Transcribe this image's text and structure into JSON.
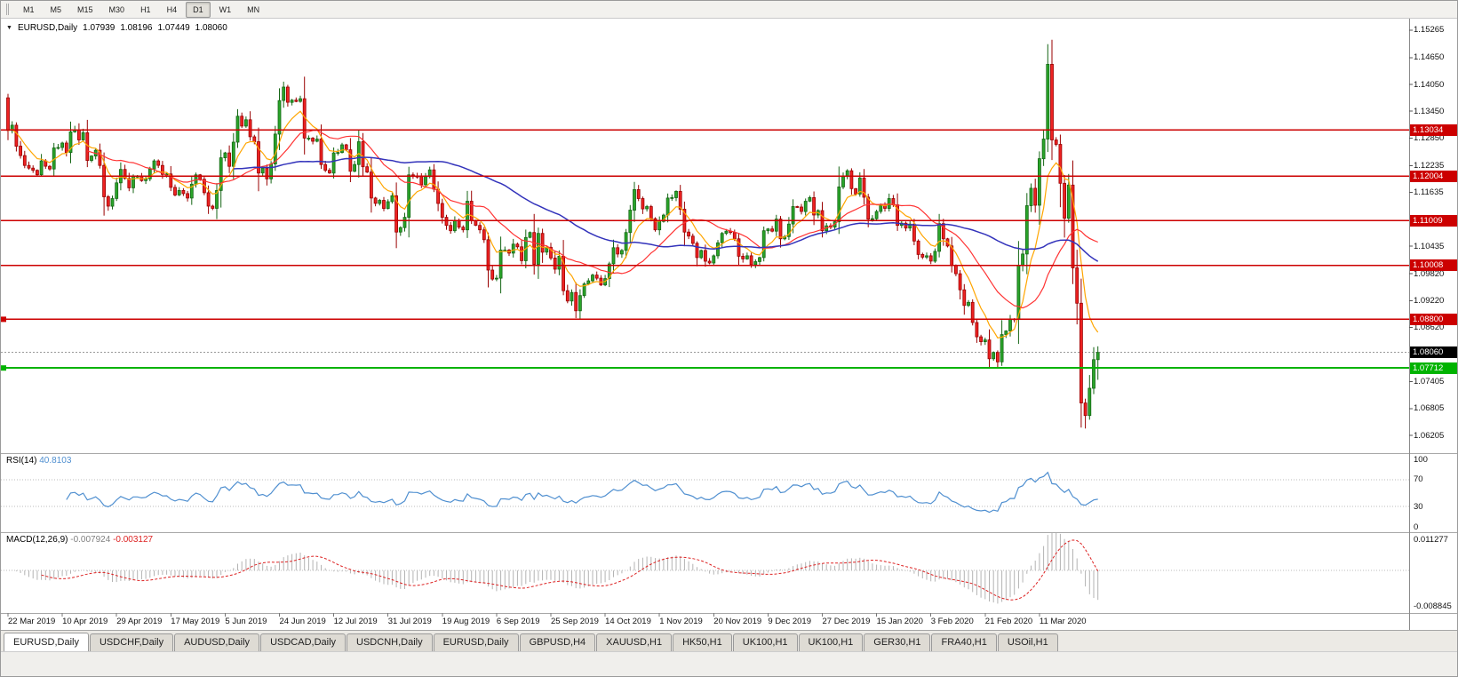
{
  "colors": {
    "up_fill": "#2aa52a",
    "up_stroke": "#156615",
    "down_fill": "#ee2222",
    "down_stroke": "#990000",
    "hline_red": "#cc0000",
    "hline_green": "#00b300",
    "ma_fast": "#ffa500",
    "ma_mid": "#ff3333",
    "ma_slow": "#3333bb",
    "rsi_line": "#4f8fd0",
    "macd_hist": "#b3b3b3",
    "macd_signal": "#dd2222",
    "tag_current": "#000000"
  },
  "toolbar": {
    "timeframes": [
      "M1",
      "M5",
      "M15",
      "M30",
      "H1",
      "H4",
      "D1",
      "W1",
      "MN"
    ],
    "active": "D1"
  },
  "main_chart": {
    "title": {
      "symbol": "EURUSD,Daily",
      "open": "1.07939",
      "high": "1.08196",
      "low": "1.07449",
      "close": "1.08060"
    },
    "price_axis": {
      "ticks": [
        "1.15265",
        "1.14650",
        "1.14050",
        "1.13450",
        "1.12850",
        "1.12235",
        "1.11635",
        "1.10435",
        "1.09820",
        "1.09220",
        "1.08620",
        "1.07405",
        "1.06805",
        "1.06205"
      ]
    },
    "hlines": [
      {
        "value": 1.13034,
        "label": "1.13034"
      },
      {
        "value": 1.12004,
        "label": "1.12004"
      },
      {
        "value": 1.11009,
        "label": "1.11009"
      },
      {
        "value": 1.10008,
        "label": "1.10008"
      },
      {
        "value": 1.088,
        "label": "1.08800",
        "anchor": true
      }
    ],
    "support_line": {
      "value": 1.07712,
      "label": "1.07712",
      "anchor": true
    },
    "current_price": {
      "value": 1.0806,
      "label": "1.08060"
    }
  },
  "rsi_panel": {
    "label": "RSI(14)",
    "value": "40.8103",
    "period": 14,
    "levels": [
      70,
      30
    ],
    "ticks": [
      {
        "label": "100",
        "value": 100
      },
      {
        "label": "70",
        "value": 70
      },
      {
        "label": "30",
        "value": 30
      },
      {
        "label": "0",
        "value": 0
      }
    ]
  },
  "macd_panel": {
    "label": "MACD(12,26,9)",
    "main_value": "-0.007924",
    "signal_value": "-0.003127",
    "params": {
      "fast": 12,
      "slow": 26,
      "signal": 9
    },
    "ticks": [
      {
        "label": "0.011277",
        "value": 0.011277
      },
      {
        "label": "-0.008845",
        "value": -0.008845
      }
    ]
  },
  "tabs": [
    {
      "label": "EURUSD,Daily",
      "active": true
    },
    {
      "label": "USDCHF,Daily"
    },
    {
      "label": "AUDUSD,Daily"
    },
    {
      "label": "USDCAD,Daily"
    },
    {
      "label": "USDCNH,Daily"
    },
    {
      "label": "EURUSD,Daily"
    },
    {
      "label": "GBPUSD,H4"
    },
    {
      "label": "XAUUSD,H1"
    },
    {
      "label": "HK50,H1"
    },
    {
      "label": "UK100,H1"
    },
    {
      "label": "UK100,H1"
    },
    {
      "label": "GER30,H1"
    },
    {
      "label": "FRA40,H1"
    },
    {
      "label": "USOil,H1"
    }
  ],
  "chart_data": {
    "type": "candlestick",
    "symbol": "EURUSD",
    "timeframe": "Daily",
    "y_range": [
      1.0585,
      1.155
    ],
    "x_label_step": 13,
    "x_labels": [
      "22 Mar 2019",
      "10 Apr 2019",
      "29 Apr 2019",
      "17 May 2019",
      "5 Jun 2019",
      "24 Jun 2019",
      "12 Jul 2019",
      "31 Jul 2019",
      "19 Aug 2019",
      "6 Sep 2019",
      "25 Sep 2019",
      "14 Oct 2019",
      "1 Nov 2019",
      "20 Nov 2019",
      "9 Dec 2019",
      "27 Dec 2019",
      "15 Jan 2020",
      "3 Feb 2020",
      "21 Feb 2020",
      "11 Mar 2020"
    ],
    "first_open": 1.1375,
    "closes": [
      1.1302,
      1.1314,
      1.1267,
      1.1246,
      1.1224,
      1.1218,
      1.1213,
      1.1203,
      1.1234,
      1.1222,
      1.1216,
      1.1263,
      1.1264,
      1.1274,
      1.1253,
      1.1299,
      1.1304,
      1.1281,
      1.1297,
      1.1235,
      1.1245,
      1.1258,
      1.1224,
      1.1154,
      1.1133,
      1.115,
      1.1185,
      1.1215,
      1.1195,
      1.1174,
      1.12,
      1.12,
      1.119,
      1.1194,
      1.1216,
      1.1234,
      1.1224,
      1.1204,
      1.1205,
      1.1175,
      1.1158,
      1.1168,
      1.1161,
      1.1151,
      1.1182,
      1.1203,
      1.1193,
      1.1163,
      1.1133,
      1.1128,
      1.1168,
      1.1241,
      1.1252,
      1.1222,
      1.1276,
      1.1334,
      1.1312,
      1.1326,
      1.1288,
      1.1277,
      1.1207,
      1.1218,
      1.1194,
      1.1227,
      1.1294,
      1.1369,
      1.1399,
      1.1365,
      1.137,
      1.1367,
      1.1373,
      1.1285,
      1.1285,
      1.1278,
      1.1283,
      1.1226,
      1.1213,
      1.1207,
      1.1252,
      1.1253,
      1.127,
      1.1259,
      1.1211,
      1.1226,
      1.1277,
      1.1221,
      1.1209,
      1.1151,
      1.1139,
      1.1146,
      1.1128,
      1.1143,
      1.1156,
      1.1075,
      1.1085,
      1.1108,
      1.1203,
      1.12,
      1.1199,
      1.1181,
      1.1199,
      1.1214,
      1.1171,
      1.1139,
      1.1108,
      1.109,
      1.1078,
      1.11,
      1.1086,
      1.108,
      1.1144,
      1.1101,
      1.109,
      1.108,
      1.1058,
      1.099,
      1.097,
      1.0972,
      1.1035,
      1.1035,
      1.1028,
      1.1048,
      1.1042,
      1.1011,
      1.1063,
      1.1074,
      1.1003,
      1.1072,
      1.103,
      1.1041,
      1.1017,
      1.0992,
      1.1021,
      1.0944,
      1.0921,
      1.094,
      1.0899,
      1.0933,
      1.0959,
      1.0966,
      1.0979,
      1.0972,
      1.0957,
      1.0971,
      1.1004,
      1.104,
      1.1026,
      1.1034,
      1.1074,
      1.1124,
      1.117,
      1.115,
      1.1127,
      1.1132,
      1.1105,
      1.108,
      1.1099,
      1.1113,
      1.1151,
      1.1152,
      1.1166,
      1.1126,
      1.1075,
      1.1066,
      1.105,
      1.1018,
      1.1034,
      1.101,
      1.1006,
      1.1022,
      1.1051,
      1.1072,
      1.1077,
      1.1074,
      1.106,
      1.1021,
      1.1015,
      1.1022,
      1.1002,
      1.1009,
      1.1018,
      1.1078,
      1.1082,
      1.1077,
      1.1104,
      1.106,
      1.1065,
      1.1093,
      1.1132,
      1.1131,
      1.1121,
      1.1144,
      1.1152,
      1.1113,
      1.1123,
      1.1078,
      1.1089,
      1.1086,
      1.1098,
      1.1176,
      1.1199,
      1.1212,
      1.1172,
      1.116,
      1.1196,
      1.1153,
      1.1104,
      1.1105,
      1.1121,
      1.1134,
      1.1128,
      1.115,
      1.1136,
      1.109,
      1.1095,
      1.1084,
      1.1093,
      1.1055,
      1.1025,
      1.1019,
      1.1022,
      1.101,
      1.1032,
      1.1094,
      1.106,
      1.1044,
      1.1,
      1.0982,
      1.0946,
      1.0911,
      1.0918,
      1.0873,
      1.0841,
      1.083,
      1.0834,
      1.0792,
      1.0806,
      1.0785,
      1.0846,
      1.0854,
      1.0881,
      1.088,
      1.1,
      1.1026,
      1.1134,
      1.1173,
      1.1135,
      1.1239,
      1.1283,
      1.145,
      1.1281,
      1.1271,
      1.1184,
      1.1106,
      1.118,
      1.0995,
      1.0916,
      1.0693,
      1.0665,
      1.0726,
      1.079,
      1.0806
    ],
    "wick_overrides": {
      "249": {
        "high": 1.1495
      },
      "258": {
        "low": 1.0636
      },
      "261": {
        "high": 1.08196,
        "low": 1.07449
      }
    },
    "moving_averages": [
      {
        "name": "fast",
        "method": "ema",
        "period": 8,
        "color_key": "ma_fast"
      },
      {
        "name": "mid",
        "method": "sma",
        "period": 20,
        "color_key": "ma_mid"
      },
      {
        "name": "slow",
        "method": "sma",
        "period": 55,
        "color_key": "ma_slow"
      }
    ]
  }
}
